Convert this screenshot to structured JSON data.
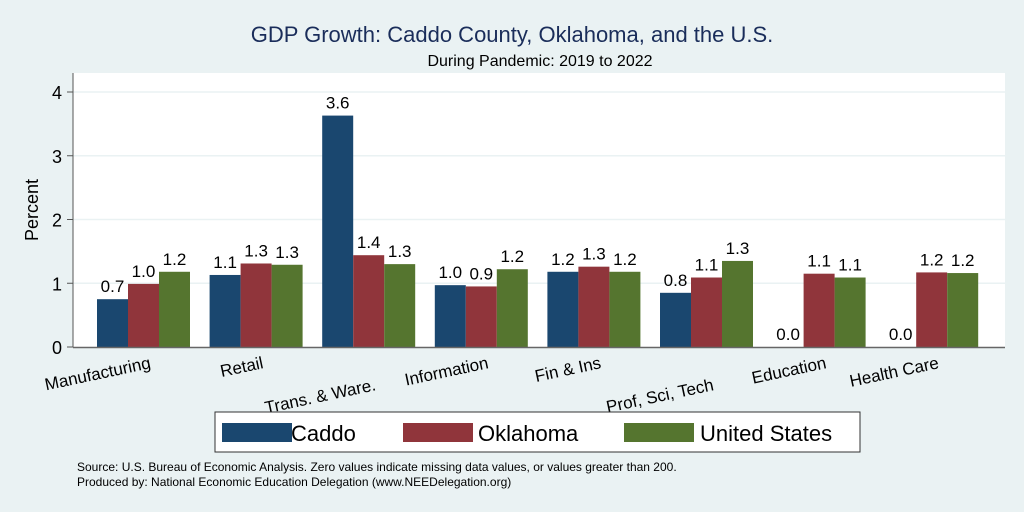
{
  "chart_data": {
    "type": "bar",
    "title": "GDP Growth: Caddo County, Oklahoma, and the U.S.",
    "subtitle": "During Pandemic: 2019 to 2022",
    "xlabel": "",
    "ylabel": "Percent",
    "ylim": [
      0,
      4.3
    ],
    "yticks": [
      0,
      1,
      2,
      3,
      4
    ],
    "grid": true,
    "legend_position": "bottom",
    "categories": [
      "Manufacturing",
      "Retail",
      "Trans. & Ware.",
      "Information",
      "Fin & Ins",
      "Prof, Sci, Tech",
      "Education",
      "Health Care"
    ],
    "series": [
      {
        "name": "Caddo",
        "color": "#1a476f",
        "values": [
          0.75,
          1.13,
          3.63,
          0.97,
          1.18,
          0.85,
          0.0,
          0.0
        ],
        "labels": [
          "0.7",
          "1.1",
          "3.6",
          "1.0",
          "1.2",
          "0.8",
          "0.0",
          "0.0"
        ]
      },
      {
        "name": "Oklahoma",
        "color": "#90353b",
        "values": [
          0.99,
          1.31,
          1.44,
          0.95,
          1.26,
          1.09,
          1.15,
          1.17
        ],
        "labels": [
          "1.0",
          "1.3",
          "1.4",
          "0.9",
          "1.3",
          "1.1",
          "1.1",
          "1.2"
        ]
      },
      {
        "name": "United States",
        "color": "#55752f",
        "values": [
          1.18,
          1.29,
          1.3,
          1.22,
          1.18,
          1.35,
          1.09,
          1.16
        ],
        "labels": [
          "1.2",
          "1.3",
          "1.3",
          "1.2",
          "1.2",
          "1.3",
          "1.1",
          "1.2"
        ]
      }
    ],
    "notes": [
      "Source: U.S. Bureau of Economic Analysis. Zero values indicate missing data values, or values greater than 200.",
      "Produced by: National Economic Education Delegation (www.NEEDelegation.org)"
    ]
  }
}
